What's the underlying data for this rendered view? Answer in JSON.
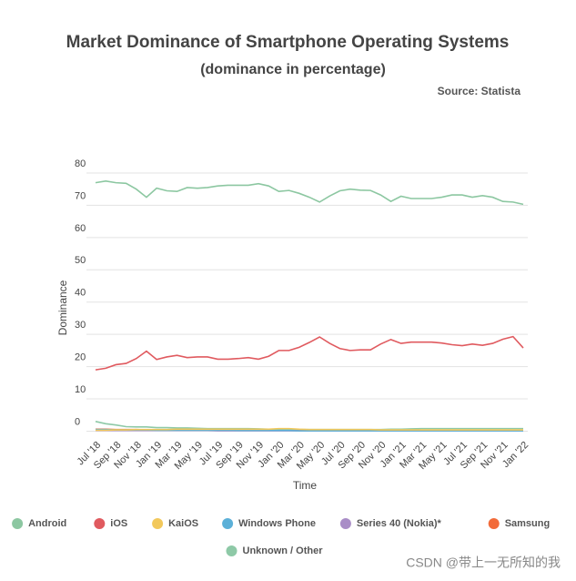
{
  "chart_data": {
    "type": "line",
    "title": "Market Dominance of Smartphone Operating Systems",
    "subtitle": "(dominance in percentage)",
    "source": "Source: Statista",
    "ylabel": "Dominance",
    "xlabel": "Time",
    "watermark": "CSDN @带上一无所知的我",
    "categories": [
      "Jul '18",
      null,
      "Sep '18",
      null,
      "Nov '18",
      null,
      "Jan '19",
      null,
      "Mar '19",
      null,
      "May '19",
      null,
      "Jul '19",
      null,
      "Sep '19",
      null,
      "Nov '19",
      null,
      "Jan '20",
      null,
      "Mar '20",
      null,
      "May '20",
      null,
      "Jul '20",
      null,
      "Sep '20",
      null,
      "Nov '20",
      null,
      "Jan '21",
      null,
      "Mar '21",
      null,
      "May '21",
      null,
      "Jul '21",
      null,
      "Sep '21",
      null,
      "Nov '21",
      null,
      "Jan '22"
    ],
    "ylim": [
      -1,
      80
    ],
    "yticks": [
      0,
      10,
      20,
      30,
      40,
      50,
      60,
      70,
      80
    ],
    "grid": true,
    "legend": "bottom",
    "series": [
      {
        "name": "Android",
        "color": "#8cc7a1",
        "values": [
          77,
          77.5,
          77,
          76.8,
          75,
          72.5,
          75.3,
          74.5,
          74.3,
          75.5,
          75.3,
          75.5,
          76,
          76.2,
          76.2,
          76.2,
          76.7,
          76,
          74.3,
          74.6,
          73.7,
          72.5,
          71,
          72.9,
          74.5,
          75,
          74.7,
          74.6,
          73.2,
          71.2,
          72.8,
          72.1,
          72.1,
          72.1,
          72.5,
          73.2,
          73.2,
          72.5,
          73,
          72.5,
          71.2,
          71,
          70.3
        ]
      },
      {
        "name": "iOS",
        "color": "#e05a5f",
        "values": [
          19,
          19.5,
          20.6,
          21,
          22.5,
          24.8,
          22.2,
          23,
          23.5,
          22.8,
          23,
          23,
          22.3,
          22.3,
          22.5,
          22.8,
          22.3,
          23.2,
          25,
          25,
          26,
          27.5,
          29.2,
          27.2,
          25.6,
          25,
          25.2,
          25.2,
          27,
          28.4,
          27.2,
          27.6,
          27.6,
          27.6,
          27.3,
          26.8,
          26.5,
          27,
          26.6,
          27.2,
          28.5,
          29.3,
          25.8
        ]
      },
      {
        "name": "KaiOS",
        "color": "#f2c85b",
        "values": [
          0.3,
          0.3,
          0.4,
          0.4,
          0.5,
          0.5,
          0.5,
          0.5,
          0.6,
          0.6,
          0.6,
          0.6,
          0.6,
          0.6,
          0.6,
          0.6,
          0.6,
          0.6,
          0.8,
          0.8,
          0.6,
          0.5,
          0.5,
          0.5,
          0.5,
          0.5,
          0.5,
          0.5,
          0.4,
          0.4,
          0.4,
          0.4,
          0.4,
          0.4,
          0.4,
          0.4,
          0.4,
          0.4,
          0.4,
          0.4,
          0.4,
          0.4,
          0.4
        ]
      },
      {
        "name": "Windows Phone",
        "color": "#5bb0d8",
        "values": [
          0.5,
          0.5,
          0.4,
          0.4,
          0.4,
          0.4,
          0.3,
          0.3,
          0.3,
          0.3,
          0.3,
          0.3,
          0.3,
          0.3,
          0.2,
          0.2,
          0.2,
          0.2,
          0.2,
          0.2,
          0.1,
          0.1,
          0.1,
          0.1,
          0.1,
          0.1,
          0.1,
          0.1,
          0.1,
          0.1,
          0.1,
          0.1,
          0.1,
          0.1,
          0.1,
          0.1,
          0.1,
          0.1,
          0.1,
          0.1,
          0.1,
          0.1,
          0.1
        ]
      },
      {
        "name": "Series 40 (Nokia)*",
        "color": "#a98dc7",
        "values": [
          0.2,
          0.2,
          0.2,
          0.2,
          0.2,
          0.2,
          0.2,
          0.2,
          0.2,
          0.2,
          0.2,
          0.2,
          0.1,
          0.1,
          0.1,
          0.1,
          0.1,
          0.1,
          0.1,
          0.1,
          0.1,
          0.1,
          0.1,
          0.1,
          0.1,
          0.1,
          0.1,
          0.1,
          0.1,
          0.1,
          0.1,
          0.1,
          0.1,
          0.1,
          0.1,
          0.1,
          0.1,
          0.1,
          0.1,
          0.1,
          0.1,
          0.1,
          0.1
        ]
      },
      {
        "name": "Samsung",
        "color": "#f26b3a",
        "values": [
          0.6,
          0.6,
          0.5,
          0.5,
          0.5,
          0.4,
          0.4,
          0.4,
          0.3,
          0.3,
          0.3,
          0.3,
          0.3,
          0.3,
          0.3,
          0.3,
          0.2,
          0.2,
          0.2,
          0.2,
          0.2,
          0.2,
          0.2,
          0.2,
          0.2,
          0.2,
          0.2,
          0.2,
          0.2,
          0.2,
          0.2,
          0.2,
          0.2,
          0.2,
          0.2,
          0.2,
          0.2,
          0.2,
          0.2,
          0.2,
          0.2,
          0.2,
          0.2
        ]
      },
      {
        "name": "Unknown / Other",
        "color": "#8ec9a7",
        "values": [
          3,
          2.3,
          1.9,
          1.4,
          1.3,
          1.3,
          1.1,
          1.1,
          1,
          1,
          0.9,
          0.8,
          0.8,
          0.8,
          0.8,
          0.8,
          0.7,
          0.6,
          0.6,
          0.6,
          0.5,
          0.5,
          0.5,
          0.5,
          0.5,
          0.5,
          0.5,
          0.5,
          0.5,
          0.6,
          0.6,
          0.7,
          0.8,
          0.8,
          0.8,
          0.8,
          0.8,
          0.8,
          0.8,
          0.8,
          0.8,
          0.8,
          0.8
        ]
      }
    ]
  }
}
